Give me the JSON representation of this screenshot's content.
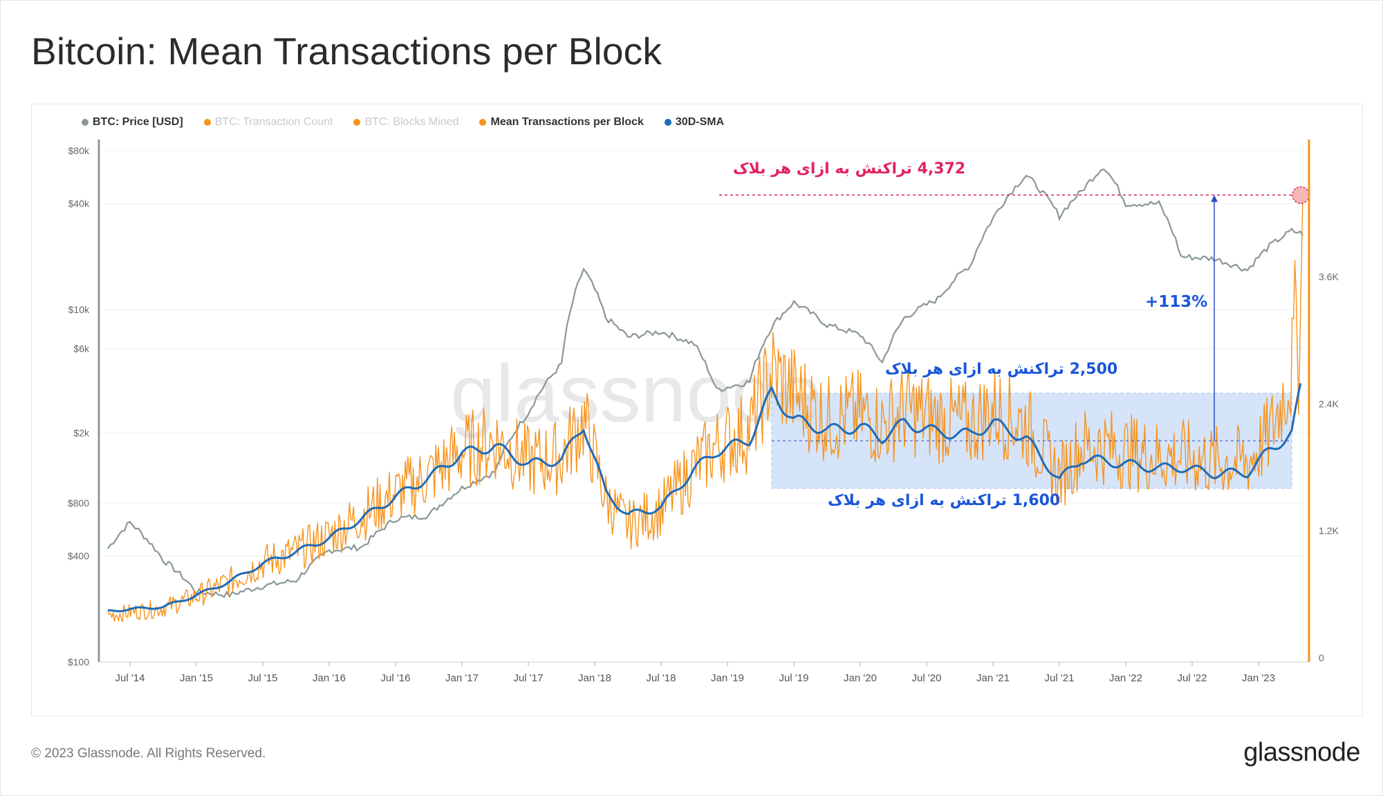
{
  "title": "Bitcoin: Mean Transactions per Block",
  "legend": [
    {
      "label": "BTC: Price [USD]",
      "color": "#8a9699",
      "active": true
    },
    {
      "label": "BTC: Transaction Count",
      "color": "#f7931a",
      "active": false
    },
    {
      "label": "BTC: Blocks Mined",
      "color": "#f7931a",
      "active": false
    },
    {
      "label": "Mean Transactions per Block",
      "color": "#f7931a",
      "active": true
    },
    {
      "label": "30D-SMA",
      "color": "#1e6bb8",
      "active": true
    }
  ],
  "watermark": "glassnode",
  "footer": {
    "copyright": "© 2023 Glassnode. All Rights Reserved.",
    "logo": "glassnode"
  },
  "annotations": {
    "peak": "4,372 تراکنش به ازای هر بلاک",
    "upper": "2,500 تراکنش به ازای هر بلاک",
    "lower": "1,600 تراکنش به ازای هر بلاک",
    "increase": "+113%"
  },
  "chart_data": {
    "type": "line",
    "title": "Bitcoin: Mean Transactions per Block",
    "x_tick_labels": [
      "Jul '14",
      "Jan '15",
      "Jul '15",
      "Jan '16",
      "Jul '16",
      "Jan '17",
      "Jul '17",
      "Jan '18",
      "Jul '18",
      "Jan '19",
      "Jul '19",
      "Jan '20",
      "Jul '20",
      "Jan '21",
      "Jul '21",
      "Jan '22",
      "Jul '22",
      "Jan '23"
    ],
    "y_left": {
      "scale": "log",
      "tick_labels": [
        "$80k",
        "$40k",
        "$10k",
        "$6k",
        "$2k",
        "$800",
        "$400",
        "$100"
      ],
      "ticks": [
        80000,
        40000,
        10000,
        6000,
        2000,
        800,
        400,
        100
      ],
      "range": [
        100,
        80000
      ]
    },
    "y_right": {
      "scale": "linear",
      "tick_labels": [
        "3.6K",
        "2.4K",
        "1.2K",
        "0"
      ],
      "ticks": [
        3600,
        2400,
        1200,
        0
      ],
      "range": [
        0,
        4870
      ]
    },
    "x": [
      "2014-05",
      "2014-07",
      "2014-10",
      "2015-01",
      "2015-04",
      "2015-07",
      "2015-10",
      "2016-01",
      "2016-04",
      "2016-07",
      "2016-10",
      "2017-01",
      "2017-04",
      "2017-07",
      "2017-10",
      "2017-12",
      "2018-02",
      "2018-04",
      "2018-07",
      "2018-10",
      "2018-12",
      "2019-03",
      "2019-05",
      "2019-07",
      "2019-10",
      "2020-01",
      "2020-03",
      "2020-05",
      "2020-08",
      "2020-11",
      "2021-01",
      "2021-04",
      "2021-07",
      "2021-09",
      "2021-11",
      "2022-01",
      "2022-04",
      "2022-06",
      "2022-09",
      "2022-12",
      "2023-02",
      "2023-04",
      "2023-05"
    ],
    "series": [
      {
        "name": "BTC: Price [USD]",
        "color": "#8a9699",
        "axis": "left",
        "values": [
          440,
          620,
          380,
          250,
          240,
          270,
          290,
          430,
          450,
          650,
          680,
          970,
          1200,
          2600,
          4900,
          17000,
          9000,
          7000,
          7500,
          6400,
          3500,
          3900,
          8000,
          11000,
          8200,
          7200,
          5000,
          9000,
          11500,
          18000,
          33000,
          58000,
          34000,
          47000,
          65000,
          40000,
          40000,
          20000,
          19500,
          16800,
          23000,
          28000,
          27000
        ]
      },
      {
        "name": "Mean Transactions per Block",
        "color": "#f7931a",
        "axis": "right",
        "values": [
          400,
          430,
          470,
          580,
          720,
          900,
          1000,
          1150,
          1350,
          1550,
          1720,
          1950,
          2050,
          1850,
          1900,
          2250,
          1500,
          1250,
          1400,
          1800,
          2000,
          2150,
          2700,
          2500,
          2250,
          2300,
          2200,
          2350,
          2250,
          2200,
          2350,
          2200,
          1700,
          2000,
          2000,
          1950,
          1900,
          1900,
          1850,
          1850,
          2100,
          2700,
          4372
        ]
      },
      {
        "name": "30D-SMA",
        "color": "#1e6bb8",
        "axis": "right",
        "values": [
          440,
          460,
          480,
          590,
          720,
          890,
          1000,
          1130,
          1320,
          1520,
          1700,
          1930,
          2000,
          1830,
          1870,
          2200,
          1560,
          1350,
          1420,
          1780,
          1950,
          2060,
          2510,
          2250,
          2150,
          2180,
          2080,
          2220,
          2130,
          2110,
          2220,
          2070,
          1680,
          1880,
          1860,
          1830,
          1790,
          1800,
          1740,
          1750,
          1960,
          2120,
          2650
        ]
      }
    ],
    "reference_lines": [
      {
        "series": "Mean Transactions per Block",
        "value": 4372,
        "label": "4,372 تراکنش به ازای هر بلاک"
      },
      {
        "series": "Mean Transactions per Block",
        "value": 2500,
        "label": "2,500 تراکنش به ازای هر بلاک"
      },
      {
        "series": "Mean Transactions per Block",
        "value": 1600,
        "label": "1,600 تراکنش به ازای هر بلاک"
      }
    ],
    "highlight_band": {
      "from": 1600,
      "to": 2500,
      "x_range": [
        "2019-05",
        "2023-04"
      ]
    },
    "increase_annotation": {
      "label": "+113%",
      "from": 2050,
      "to": 4372,
      "x": "2022-09"
    },
    "grid": true,
    "legend_position": "top-left"
  }
}
